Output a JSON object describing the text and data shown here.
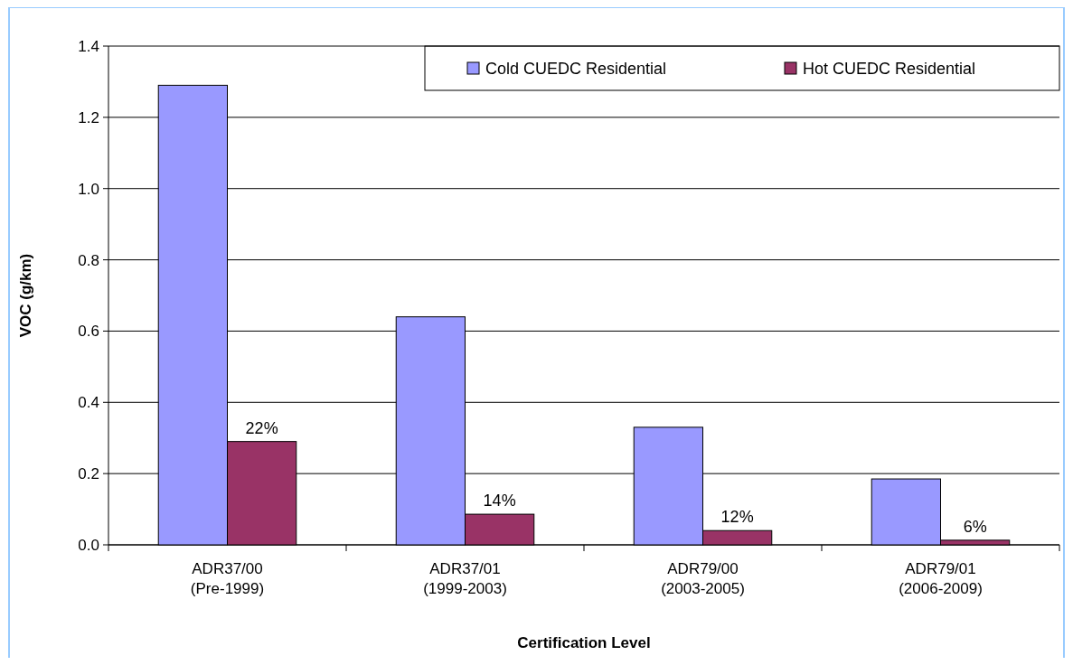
{
  "chart_data": {
    "type": "bar",
    "xlabel": "Certification Level",
    "ylabel": "VOC (g/km)",
    "categories": [
      "ADR37/00\n(Pre-1999)",
      "ADR37/01\n(1999-2003)",
      "ADR79/00\n(2003-2005)",
      "ADR79/01\n(2006-2009)"
    ],
    "series": [
      {
        "name": "Cold CUEDC Residential",
        "color": "#9999ff",
        "values": [
          1.29,
          0.64,
          0.33,
          0.185
        ]
      },
      {
        "name": "Hot CUEDC Residential",
        "color": "#993366",
        "values": [
          0.29,
          0.086,
          0.04,
          0.013
        ]
      }
    ],
    "annotations": [
      {
        "text": "22%",
        "x": "ADR37/00\n(Pre-1999)",
        "y": 0.29
      },
      {
        "text": "14%",
        "x": "ADR37/01\n(1999-2003)",
        "y": 0.086
      },
      {
        "text": "12%",
        "x": "ADR79/00\n(2003-2005)",
        "y": 0.04
      },
      {
        "text": "6%",
        "x": "ADR79/01\n(2006-2009)",
        "y": 0.013
      }
    ],
    "ylim": [
      0,
      1.4
    ],
    "yticks": [
      {
        "value": 0,
        "label": "0.0"
      },
      {
        "value": 0.2,
        "label": "0.2"
      },
      {
        "value": 0.4,
        "label": "0.4"
      },
      {
        "value": 0.6,
        "label": "0.6"
      },
      {
        "value": 0.8,
        "label": "0.8"
      },
      {
        "value": 1,
        "label": "1.0"
      },
      {
        "value": 1.2,
        "label": "1.2"
      },
      {
        "value": 1.4,
        "label": "1.4"
      }
    ],
    "grid": "y",
    "legend": "top right"
  }
}
